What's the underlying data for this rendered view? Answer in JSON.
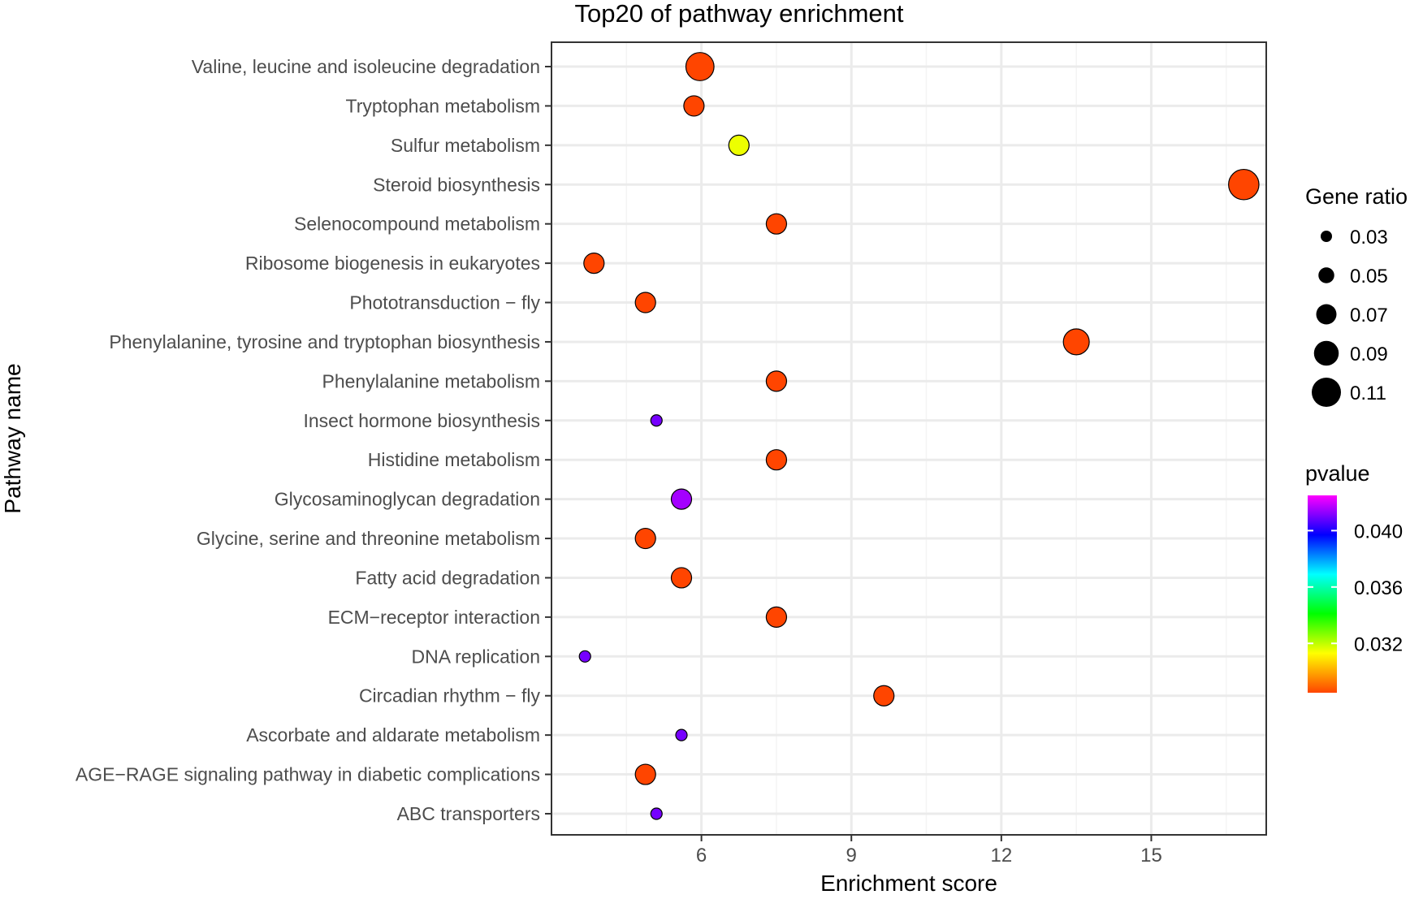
{
  "chart_data": {
    "type": "scatter",
    "title": "Top20 of pathway enrichment",
    "xlabel": "Enrichment score",
    "ylabel": "Pathway name",
    "xlim": [
      3.0,
      17.3
    ],
    "xticks": [
      6,
      9,
      12,
      15
    ],
    "xtick_labels": [
      "6",
      "9",
      "12",
      "15"
    ],
    "grid": true,
    "categories": [
      "Valine, leucine and isoleucine degradation",
      "Tryptophan metabolism",
      "Sulfur metabolism",
      "Steroid biosynthesis",
      "Selenocompound metabolism",
      "Ribosome biogenesis in eukaryotes",
      "Phototransduction − fly",
      "Phenylalanine, tyrosine and tryptophan biosynthesis",
      "Phenylalanine metabolism",
      "Insect hormone biosynthesis",
      "Histidine metabolism",
      "Glycosaminoglycan degradation",
      "Glycine, serine and threonine metabolism",
      "Fatty acid degradation",
      "ECM−receptor interaction",
      "DNA replication",
      "Circadian rhythm − fly",
      "Ascorbate and aldarate metabolism",
      "AGE−RAGE signaling pathway in diabetic complications",
      "ABC transporters"
    ],
    "points": [
      {
        "pathway": "Valine, leucine and isoleucine degradation",
        "enrichment": 5.97,
        "gene_ratio": 0.105,
        "pvalue": 0.028
      },
      {
        "pathway": "Tryptophan metabolism",
        "enrichment": 5.85,
        "gene_ratio": 0.07,
        "pvalue": 0.028
      },
      {
        "pathway": "Sulfur metabolism",
        "enrichment": 6.75,
        "gene_ratio": 0.07,
        "pvalue": 0.0315
      },
      {
        "pathway": "Steroid biosynthesis",
        "enrichment": 16.85,
        "gene_ratio": 0.115,
        "pvalue": 0.028
      },
      {
        "pathway": "Selenocompound metabolism",
        "enrichment": 7.5,
        "gene_ratio": 0.07,
        "pvalue": 0.028
      },
      {
        "pathway": "Ribosome biogenesis in eukaryotes",
        "enrichment": 3.85,
        "gene_ratio": 0.07,
        "pvalue": 0.028
      },
      {
        "pathway": "Phototransduction − fly",
        "enrichment": 4.88,
        "gene_ratio": 0.07,
        "pvalue": 0.028
      },
      {
        "pathway": "Phenylalanine, tyrosine and tryptophan biosynthesis",
        "enrichment": 13.5,
        "gene_ratio": 0.095,
        "pvalue": 0.028
      },
      {
        "pathway": "Phenylalanine metabolism",
        "enrichment": 7.5,
        "gene_ratio": 0.07,
        "pvalue": 0.028
      },
      {
        "pathway": "Insect hormone biosynthesis",
        "enrichment": 5.1,
        "gene_ratio": 0.03,
        "pvalue": 0.041
      },
      {
        "pathway": "Histidine metabolism",
        "enrichment": 7.5,
        "gene_ratio": 0.07,
        "pvalue": 0.028
      },
      {
        "pathway": "Glycosaminoglycan degradation",
        "enrichment": 5.6,
        "gene_ratio": 0.07,
        "pvalue": 0.0415
      },
      {
        "pathway": "Glycine, serine and threonine metabolism",
        "enrichment": 4.88,
        "gene_ratio": 0.07,
        "pvalue": 0.028
      },
      {
        "pathway": "Fatty acid degradation",
        "enrichment": 5.6,
        "gene_ratio": 0.07,
        "pvalue": 0.028
      },
      {
        "pathway": "ECM−receptor interaction",
        "enrichment": 7.5,
        "gene_ratio": 0.07,
        "pvalue": 0.028
      },
      {
        "pathway": "DNA replication",
        "enrichment": 3.67,
        "gene_ratio": 0.03,
        "pvalue": 0.041
      },
      {
        "pathway": "Circadian rhythm − fly",
        "enrichment": 9.65,
        "gene_ratio": 0.07,
        "pvalue": 0.028
      },
      {
        "pathway": "Ascorbate and aldarate metabolism",
        "enrichment": 5.6,
        "gene_ratio": 0.03,
        "pvalue": 0.041
      },
      {
        "pathway": "AGE−RAGE signaling pathway in diabetic complications",
        "enrichment": 4.88,
        "gene_ratio": 0.07,
        "pvalue": 0.028
      },
      {
        "pathway": "ABC transporters",
        "enrichment": 5.1,
        "gene_ratio": 0.03,
        "pvalue": 0.041
      }
    ],
    "size_legend": {
      "title": "Gene ratio",
      "values": [
        0.03,
        0.05,
        0.07,
        0.09,
        0.11
      ],
      "labels": [
        "0.03",
        "0.05",
        "0.07",
        "0.09",
        "0.11"
      ]
    },
    "color_legend": {
      "title": "pvalue",
      "range": [
        0.0285,
        0.0425
      ],
      "ticks": [
        0.04,
        0.036,
        0.032
      ],
      "tick_labels": [
        "0.040",
        "0.036",
        "0.032"
      ],
      "gradient_stops": [
        "#ff4500",
        "#ffff00",
        "#00ff00",
        "#00ffff",
        "#0000ff",
        "#ff00ff"
      ]
    },
    "legend_position": "right",
    "colors": {
      "point_outline": "#000000",
      "grid_major": "#ebebeb",
      "grid_minor": "#f4f4f4",
      "panel_border": "#333333",
      "axis_text": "#4d4d4d",
      "text": "#000000"
    }
  }
}
